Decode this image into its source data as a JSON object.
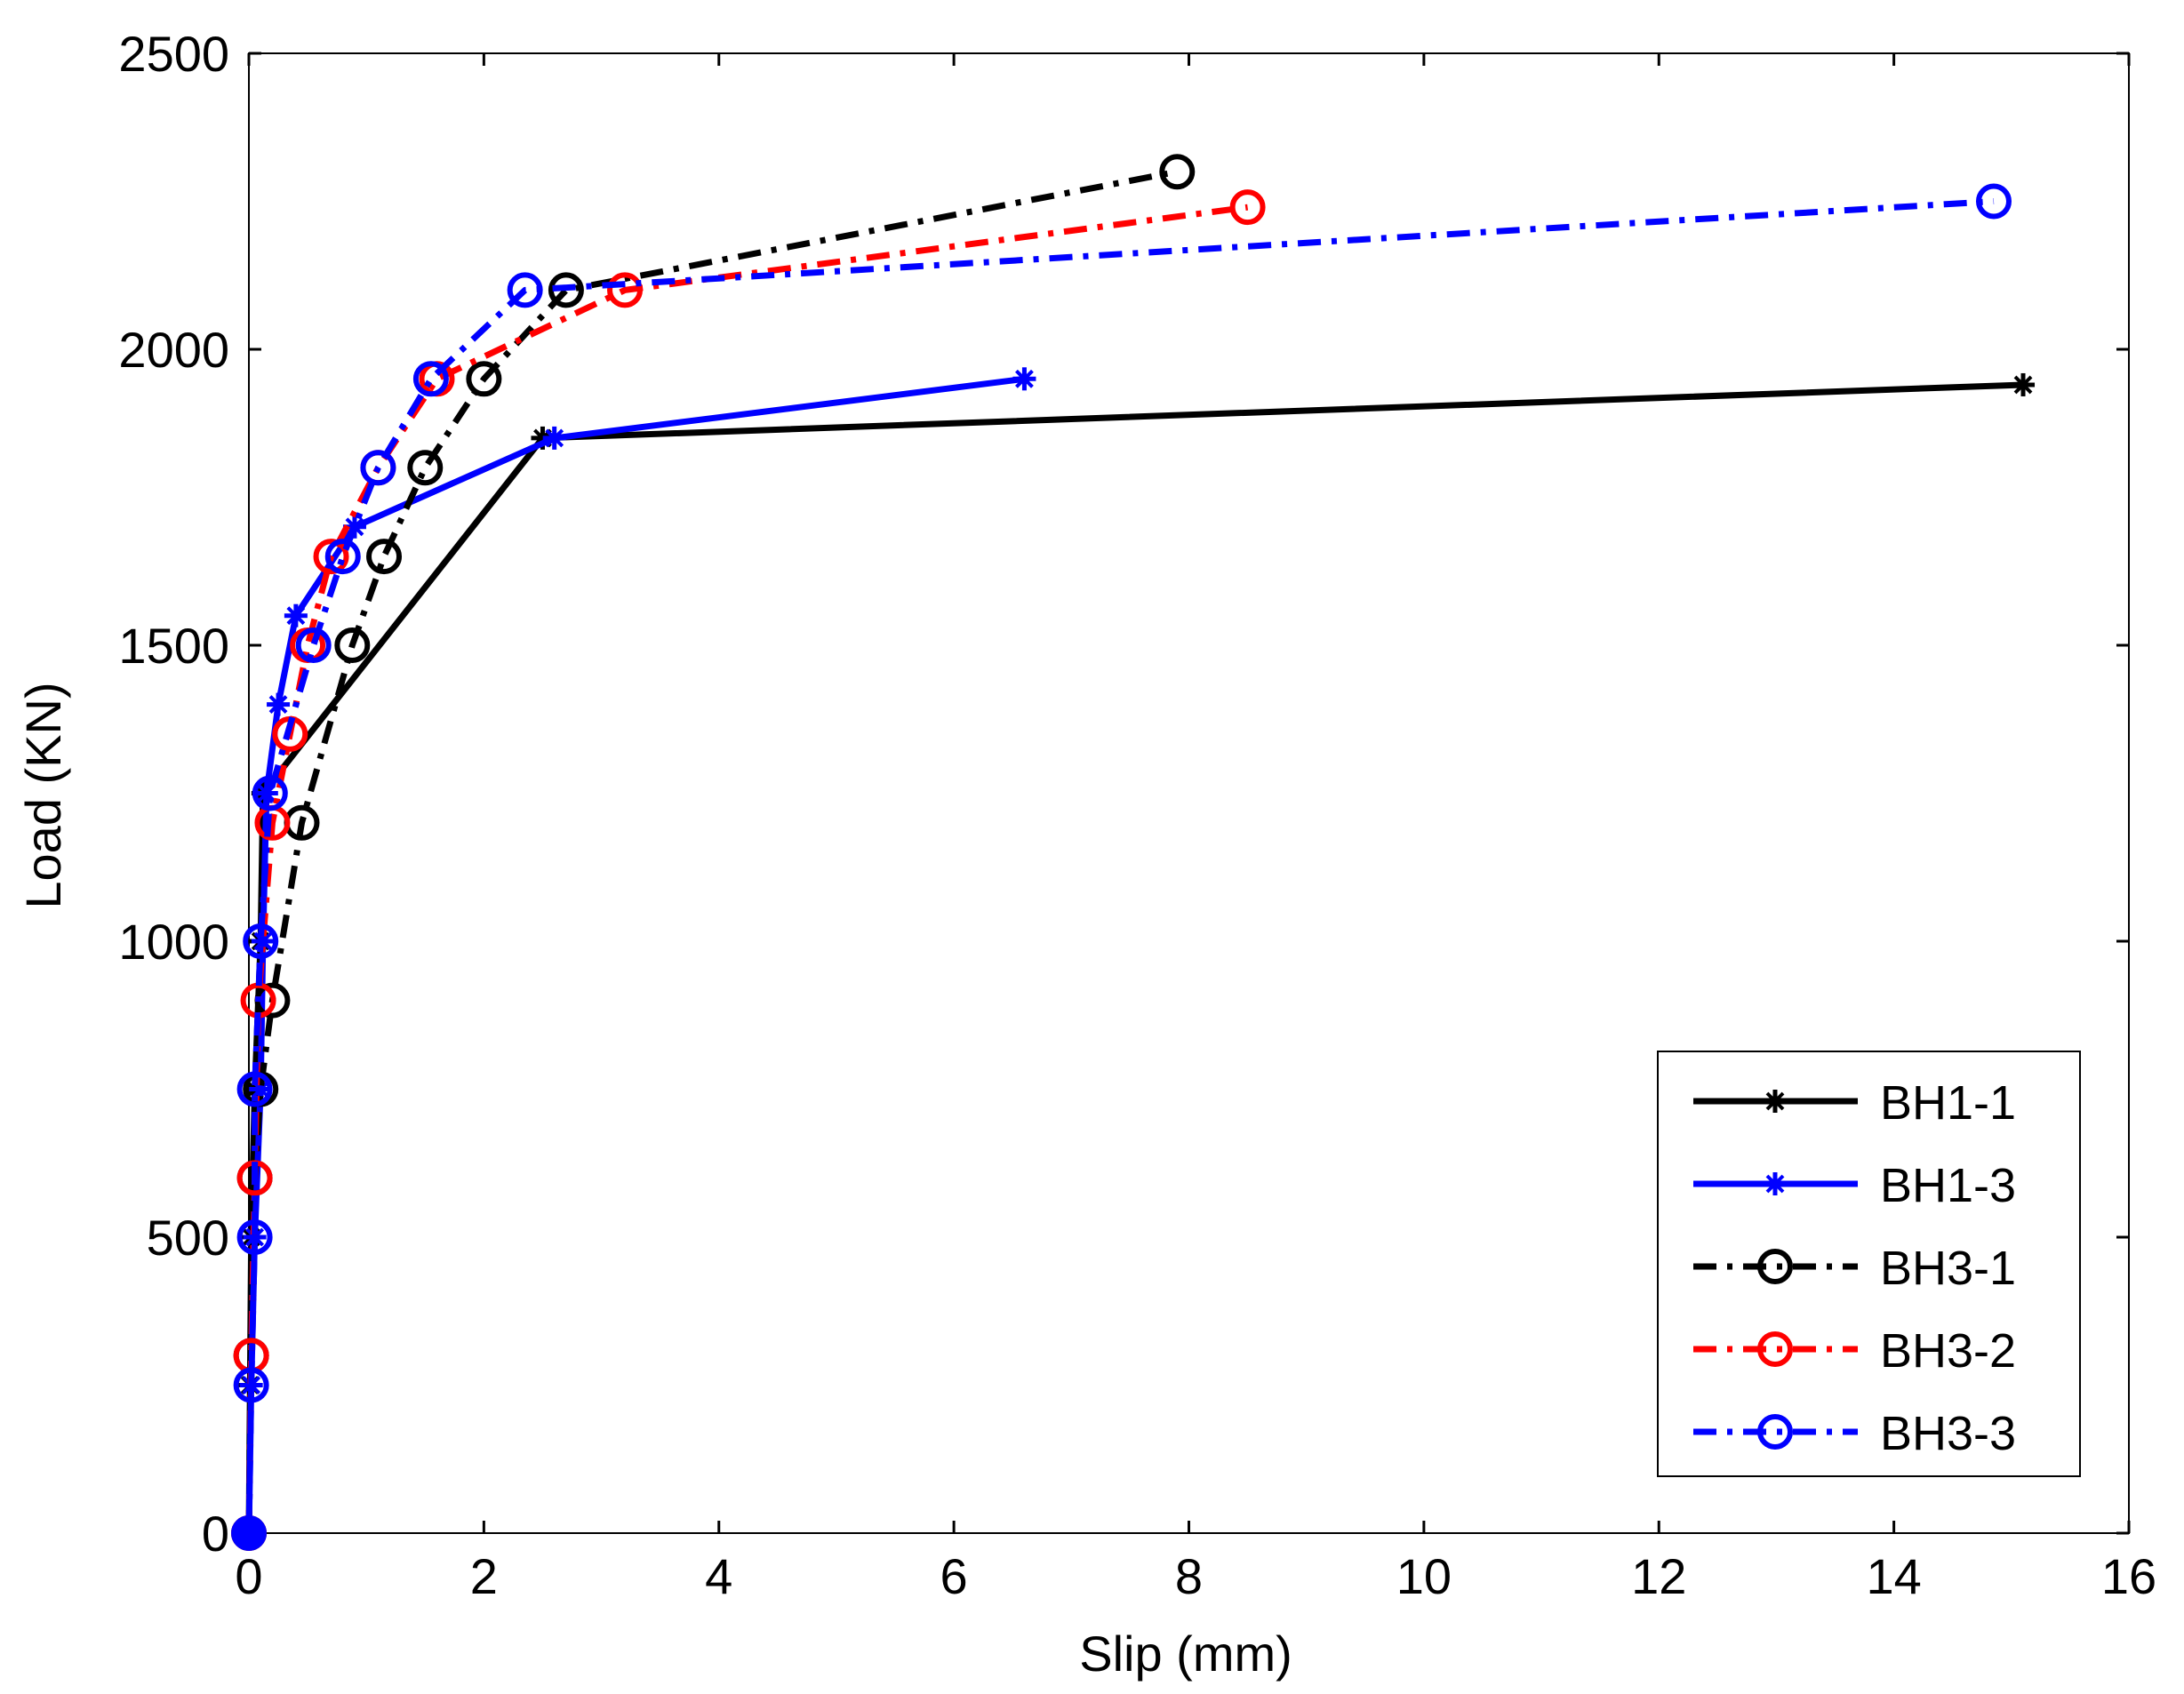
{
  "chart_data": {
    "type": "line",
    "title": "",
    "xlabel": "Slip (mm)",
    "ylabel": "Load (KN)",
    "xlim": [
      0,
      16
    ],
    "ylim": [
      0,
      2500
    ],
    "xticks": [
      0,
      2,
      4,
      6,
      8,
      10,
      12,
      14,
      16
    ],
    "yticks": [
      0,
      500,
      1000,
      1500,
      2000,
      2500
    ],
    "xtick_labels": [
      "0",
      "2",
      "4",
      "6",
      "8",
      "10",
      "12",
      "14",
      "16"
    ],
    "ytick_labels": [
      "0",
      "500",
      "1000",
      "1500",
      "2000",
      "2500"
    ],
    "grid": false,
    "legend_position": "bottom-right",
    "series": [
      {
        "name": "BH1-1",
        "color": "#000000",
        "line_style": "solid",
        "marker": "star",
        "x": [
          0,
          0.01,
          0.02,
          0.05,
          0.1,
          0.12,
          2.5,
          15.1
        ],
        "y": [
          0,
          250,
          500,
          750,
          1000,
          1250,
          1850,
          1940
        ]
      },
      {
        "name": "BH1-3",
        "color": "#0000ff",
        "line_style": "solid",
        "marker": "star",
        "x": [
          0,
          0.02,
          0.05,
          0.1,
          0.12,
          0.15,
          0.25,
          0.4,
          0.9,
          2.6,
          6.6
        ],
        "y": [
          0,
          250,
          500,
          750,
          1000,
          1250,
          1400,
          1550,
          1700,
          1850,
          1950
        ]
      },
      {
        "name": "BH3-1",
        "color": "#000000",
        "line_style": "dashdot",
        "marker": "circle",
        "x": [
          0,
          0.02,
          0.05,
          0.1,
          0.2,
          0.45,
          0.88,
          1.15,
          1.5,
          2.0,
          2.7,
          7.9
        ],
        "y": [
          0,
          300,
          600,
          750,
          900,
          1200,
          1500,
          1650,
          1800,
          1950,
          2100,
          2300
        ]
      },
      {
        "name": "BH3-2",
        "color": "#ff0000",
        "line_style": "dashdot",
        "marker": "circle",
        "x": [
          0,
          0.02,
          0.05,
          0.08,
          0.2,
          0.35,
          0.5,
          0.7,
          1.1,
          1.6,
          3.2,
          8.5
        ],
        "y": [
          0,
          300,
          600,
          900,
          1200,
          1350,
          1500,
          1650,
          1800,
          1950,
          2100,
          2240
        ]
      },
      {
        "name": "BH3-3",
        "color": "#0000ff",
        "line_style": "dashdot",
        "marker": "circle",
        "x": [
          0,
          0.02,
          0.05,
          0.05,
          0.1,
          0.18,
          0.55,
          0.8,
          1.1,
          1.55,
          2.35,
          14.85
        ],
        "y": [
          0,
          250,
          500,
          750,
          1000,
          1250,
          1500,
          1650,
          1800,
          1950,
          2100,
          2250
        ]
      }
    ]
  }
}
